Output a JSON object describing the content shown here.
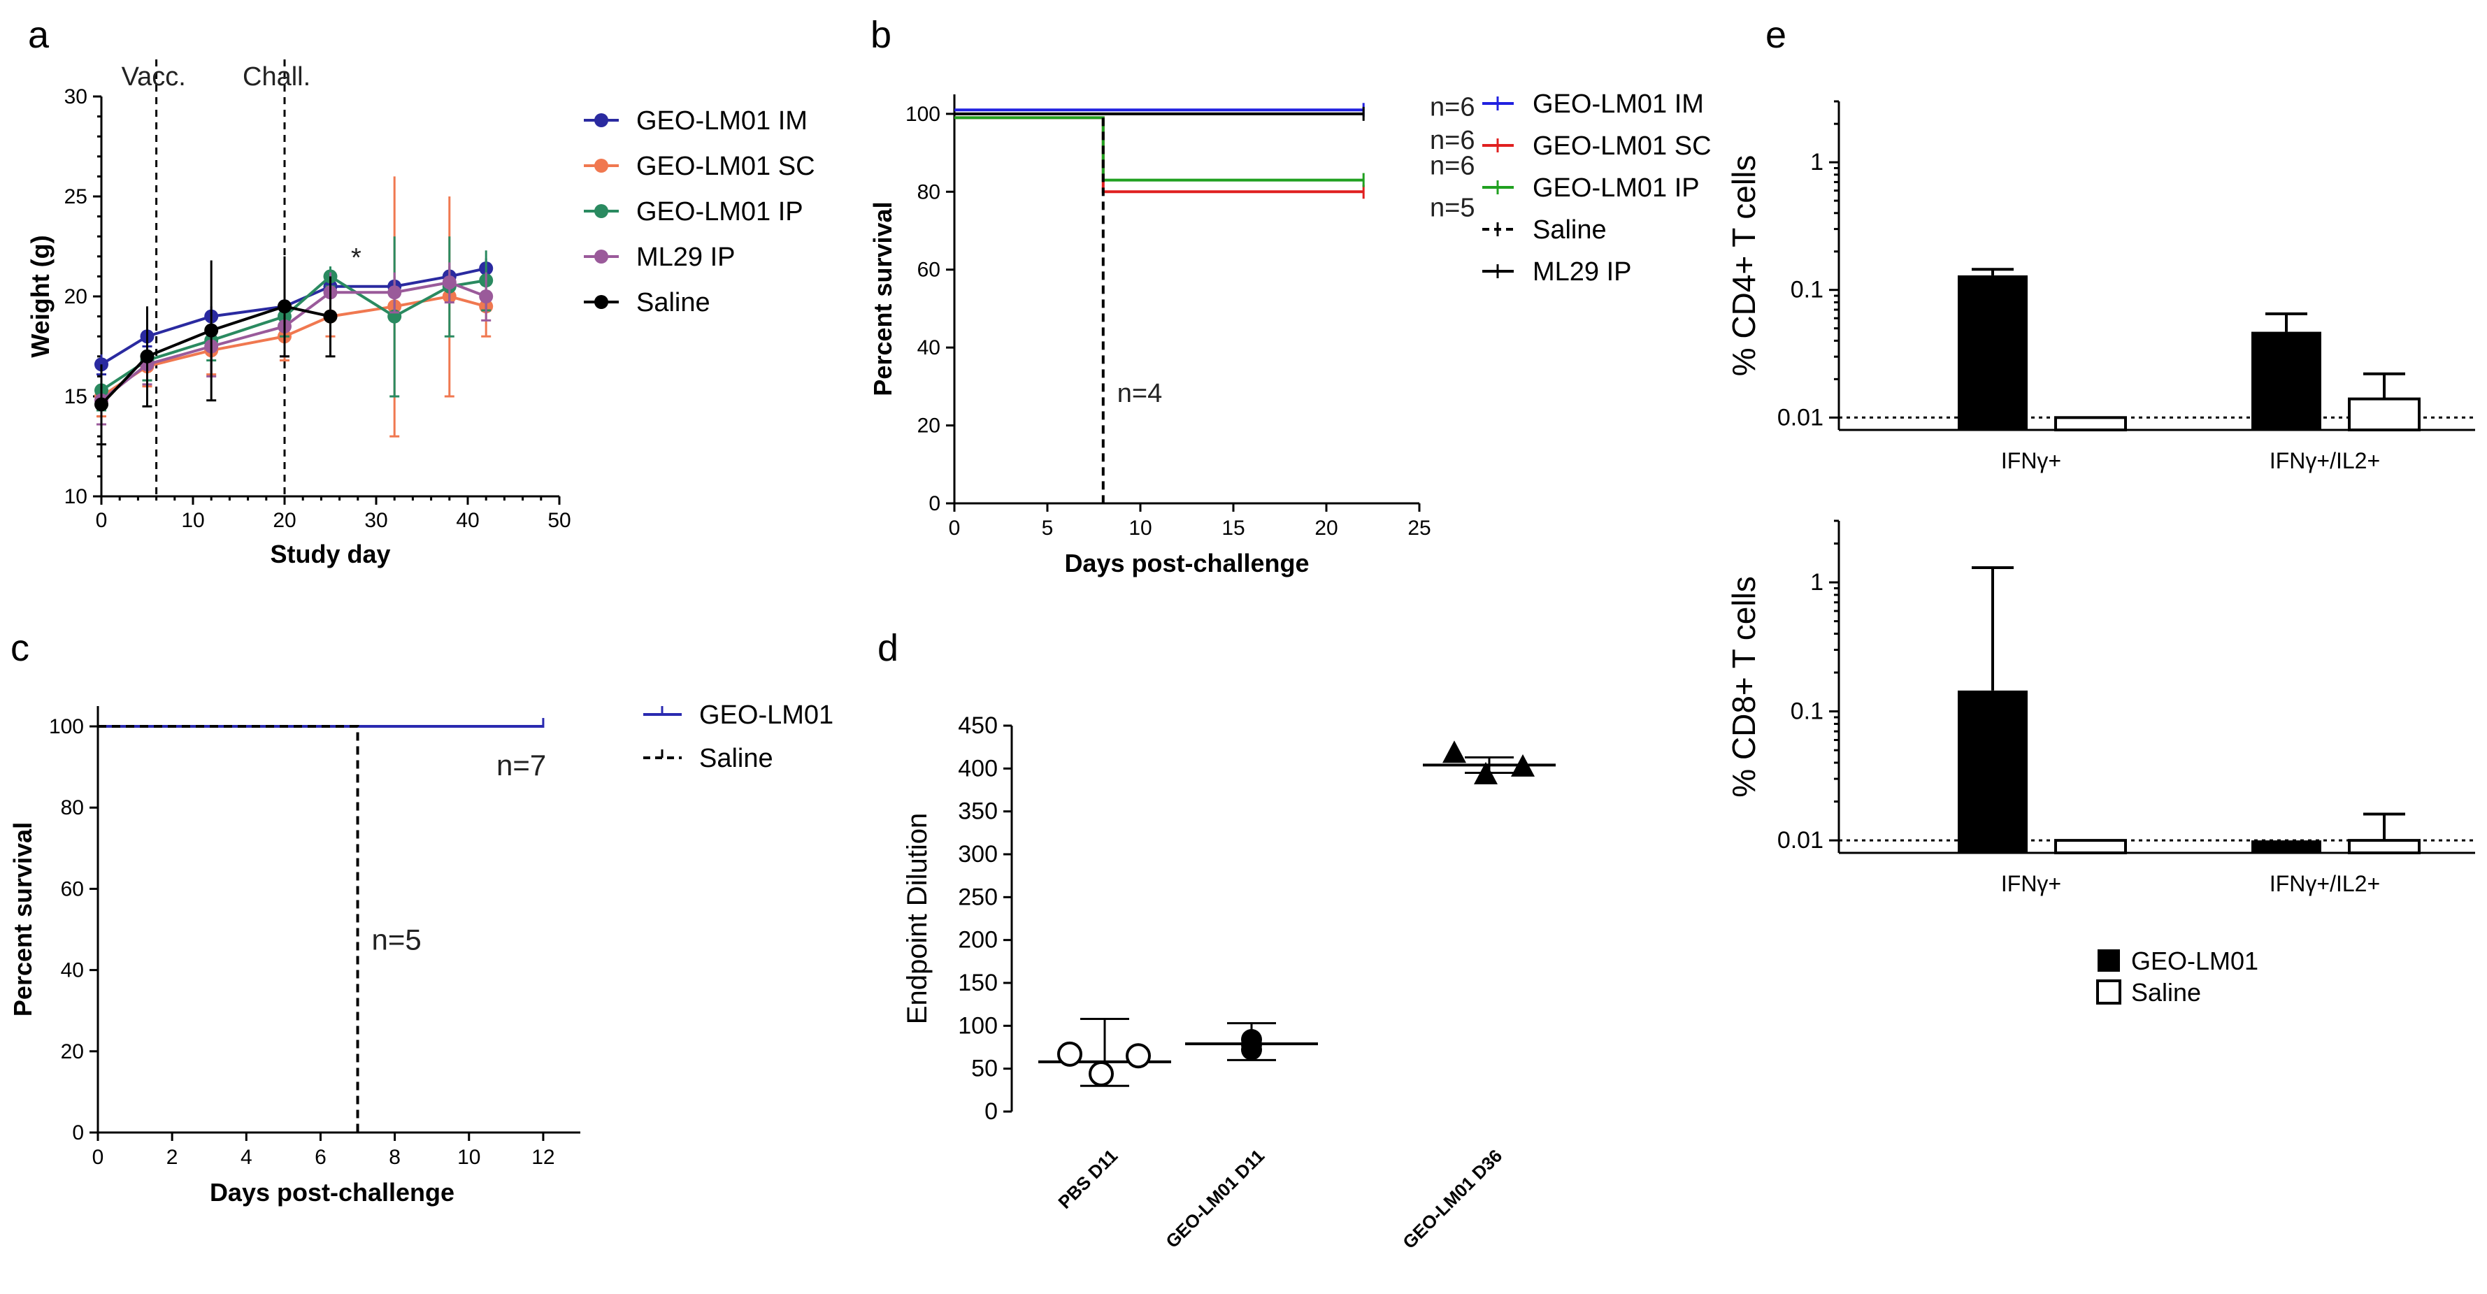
{
  "colors": {
    "im": "#2a2aa0",
    "sc": "#f07850",
    "ip": "#2a8a60",
    "ml29": "#9a5a9a",
    "saline": "#000000",
    "b_im": "#2020e0",
    "b_sc": "#e02020",
    "b_ip": "#20a020",
    "c_geo": "#2a2ab0"
  },
  "chart_data": [
    {
      "panel": "a",
      "type": "line",
      "title": "",
      "xlabel": "Study day",
      "ylabel": "Weight  (g)",
      "xlim": [
        0,
        50
      ],
      "ylim": [
        10,
        30
      ],
      "xticks": [
        "0",
        "10",
        "20",
        "30",
        "40",
        "50"
      ],
      "yticks": [
        "10",
        "15",
        "20",
        "25",
        "30"
      ],
      "vlines": [
        {
          "x": 6,
          "label": "Vacc."
        },
        {
          "x": 20,
          "label": "Chall."
        }
      ],
      "annotation": "*",
      "series": [
        {
          "name": "GEO-LM01 IM",
          "color": "#2a2aa0",
          "x": [
            0,
            5,
            12,
            20,
            25,
            32,
            38,
            42
          ],
          "values": [
            16.6,
            18.0,
            19.0,
            19.5,
            20.5,
            20.5,
            21.0,
            21.4
          ],
          "err": [
            0.5,
            0.5,
            0.5,
            0.5,
            0.5,
            0.5,
            0.5,
            0.5
          ]
        },
        {
          "name": "GEO-LM01 SC",
          "color": "#f07850",
          "x": [
            0,
            5,
            12,
            20,
            25,
            32,
            38,
            42
          ],
          "values": [
            15.0,
            16.5,
            17.3,
            18.0,
            19.0,
            19.5,
            20.0,
            19.5
          ],
          "err": [
            1.0,
            1.0,
            1.2,
            1.2,
            1.0,
            6.5,
            5.0,
            1.5
          ]
        },
        {
          "name": "GEO-LM01 IP",
          "color": "#2a8a60",
          "x": [
            0,
            5,
            12,
            20,
            25,
            32,
            38,
            42
          ],
          "values": [
            15.3,
            16.8,
            17.8,
            19.0,
            21.0,
            19.0,
            20.5,
            20.8
          ],
          "err": [
            1.0,
            1.0,
            1.0,
            1.0,
            0.5,
            4.0,
            2.5,
            1.5
          ]
        },
        {
          "name": "ML29 IP",
          "color": "#9a5a9a",
          "x": [
            0,
            5,
            12,
            20,
            25,
            32,
            38,
            42
          ],
          "values": [
            14.8,
            16.6,
            17.5,
            18.5,
            20.2,
            20.2,
            20.7,
            20.0
          ],
          "err": [
            1.2,
            1.0,
            1.5,
            1.5,
            1.0,
            1.0,
            1.0,
            1.2
          ]
        },
        {
          "name": "Saline",
          "color": "#000000",
          "x": [
            0,
            5,
            12,
            20,
            25
          ],
          "values": [
            14.6,
            17.0,
            18.3,
            19.5,
            19.0
          ],
          "err": [
            2.0,
            2.5,
            3.5,
            2.5,
            2.0
          ]
        }
      ]
    },
    {
      "panel": "b",
      "type": "line",
      "subtype": "kaplan-meier",
      "xlabel": "Days post-challenge",
      "ylabel": "Percent survival",
      "xlim": [
        0,
        25
      ],
      "ylim": [
        0,
        100
      ],
      "xticks": [
        "0",
        "5",
        "10",
        "15",
        "20",
        "25"
      ],
      "yticks": [
        "0",
        "20",
        "40",
        "60",
        "80",
        "100"
      ],
      "series": [
        {
          "name": "GEO-LM01 IM",
          "color": "#2020e0",
          "dash": false,
          "x": [
            0,
            22
          ],
          "values": [
            101,
            101
          ],
          "label": "n=6"
        },
        {
          "name": "GEO-LM01 SC",
          "color": "#e02020",
          "dash": false,
          "x": [
            0,
            8,
            8,
            22
          ],
          "values": [
            99,
            99,
            80,
            80
          ],
          "label": "n=5"
        },
        {
          "name": "GEO-LM01 IP",
          "color": "#20a020",
          "dash": false,
          "x": [
            0,
            8,
            8,
            22
          ],
          "values": [
            99,
            99,
            83,
            83
          ],
          "label": "n=6"
        },
        {
          "name": "Saline",
          "color": "#000000",
          "dash": true,
          "x": [
            8,
            8
          ],
          "values": [
            99,
            0
          ],
          "label": "n=4"
        },
        {
          "name": "ML29 IP",
          "color": "#000000",
          "dash": false,
          "x": [
            0,
            22
          ],
          "values": [
            100,
            100
          ],
          "label": "n=6"
        }
      ]
    },
    {
      "panel": "c",
      "type": "line",
      "subtype": "kaplan-meier",
      "xlabel": "Days post-challenge",
      "ylabel": "Percent survival",
      "xlim": [
        0,
        13
      ],
      "ylim": [
        0,
        100
      ],
      "xticks": [
        "0",
        "2",
        "4",
        "6",
        "8",
        "10",
        "12"
      ],
      "yticks": [
        "0",
        "20",
        "40",
        "60",
        "80",
        "100"
      ],
      "series": [
        {
          "name": "GEO-LM01",
          "color": "#2a2ab0",
          "dash": false,
          "x": [
            0,
            12
          ],
          "values": [
            100,
            100
          ],
          "label": "n=7"
        },
        {
          "name": "Saline",
          "color": "#000000",
          "dash": true,
          "x": [
            0,
            7,
            7
          ],
          "values": [
            100,
            100,
            0
          ],
          "label": "n=5"
        }
      ]
    },
    {
      "panel": "d",
      "type": "scatter",
      "xlabel": "",
      "ylabel": "Endpoint Dilution",
      "ylim": [
        0,
        450
      ],
      "yticks": [
        "0",
        "50",
        "100",
        "150",
        "200",
        "250",
        "300",
        "350",
        "400",
        "450"
      ],
      "categories": [
        "PBS D11",
        "GEO-LM01 D11",
        "GEO-LM01 D36"
      ],
      "series": [
        {
          "name": "PBS D11",
          "marker": "open-circle",
          "values": [
            67,
            44,
            65
          ],
          "mean": 58,
          "sd_low": 30,
          "sd_high": 108
        },
        {
          "name": "GEO-LM01 D11",
          "marker": "filled-circle",
          "values": [
            84,
            78,
            72
          ],
          "mean": 79,
          "sd_low": 60,
          "sd_high": 103
        },
        {
          "name": "GEO-LM01 D36",
          "marker": "filled-triangle",
          "values": [
            418,
            393,
            402
          ],
          "mean": 404,
          "sd_low": 395,
          "sd_high": 413
        }
      ]
    },
    {
      "panel": "e-top",
      "type": "bar",
      "scale": "log",
      "ylabel": "% CD4+ T cells",
      "ylim": [
        0.008,
        3
      ],
      "yticks": [
        "0.01",
        "0.1",
        "1"
      ],
      "categories": [
        "IFNγ+",
        "IFNγ+/IL2+"
      ],
      "reference_line": 0.01,
      "series": [
        {
          "name": "GEO-LM01",
          "fill": "filled",
          "values": [
            0.13,
            0.047
          ],
          "err": [
            0.145,
            0.065
          ]
        },
        {
          "name": "Saline",
          "fill": "open",
          "values": [
            0.01,
            0.014
          ],
          "err": [
            0.01,
            0.022
          ]
        }
      ]
    },
    {
      "panel": "e-bottom",
      "type": "bar",
      "scale": "log",
      "ylabel": "% CD8+ T cells",
      "ylim": [
        0.008,
        3
      ],
      "yticks": [
        "0.01",
        "0.1",
        "1"
      ],
      "categories": [
        "IFNγ+",
        "IFNγ+/IL2+"
      ],
      "reference_line": 0.01,
      "series": [
        {
          "name": "GEO-LM01",
          "fill": "filled",
          "values": [
            0.145,
            0.01
          ],
          "err": [
            1.3,
            0.01
          ]
        },
        {
          "name": "Saline",
          "fill": "open",
          "values": [
            0.01,
            0.01
          ],
          "err": [
            0.01,
            0.016
          ]
        }
      ]
    }
  ],
  "legends": {
    "e": [
      {
        "name": "GEO-LM01",
        "fill": "filled"
      },
      {
        "name": "Saline",
        "fill": "open"
      }
    ]
  }
}
